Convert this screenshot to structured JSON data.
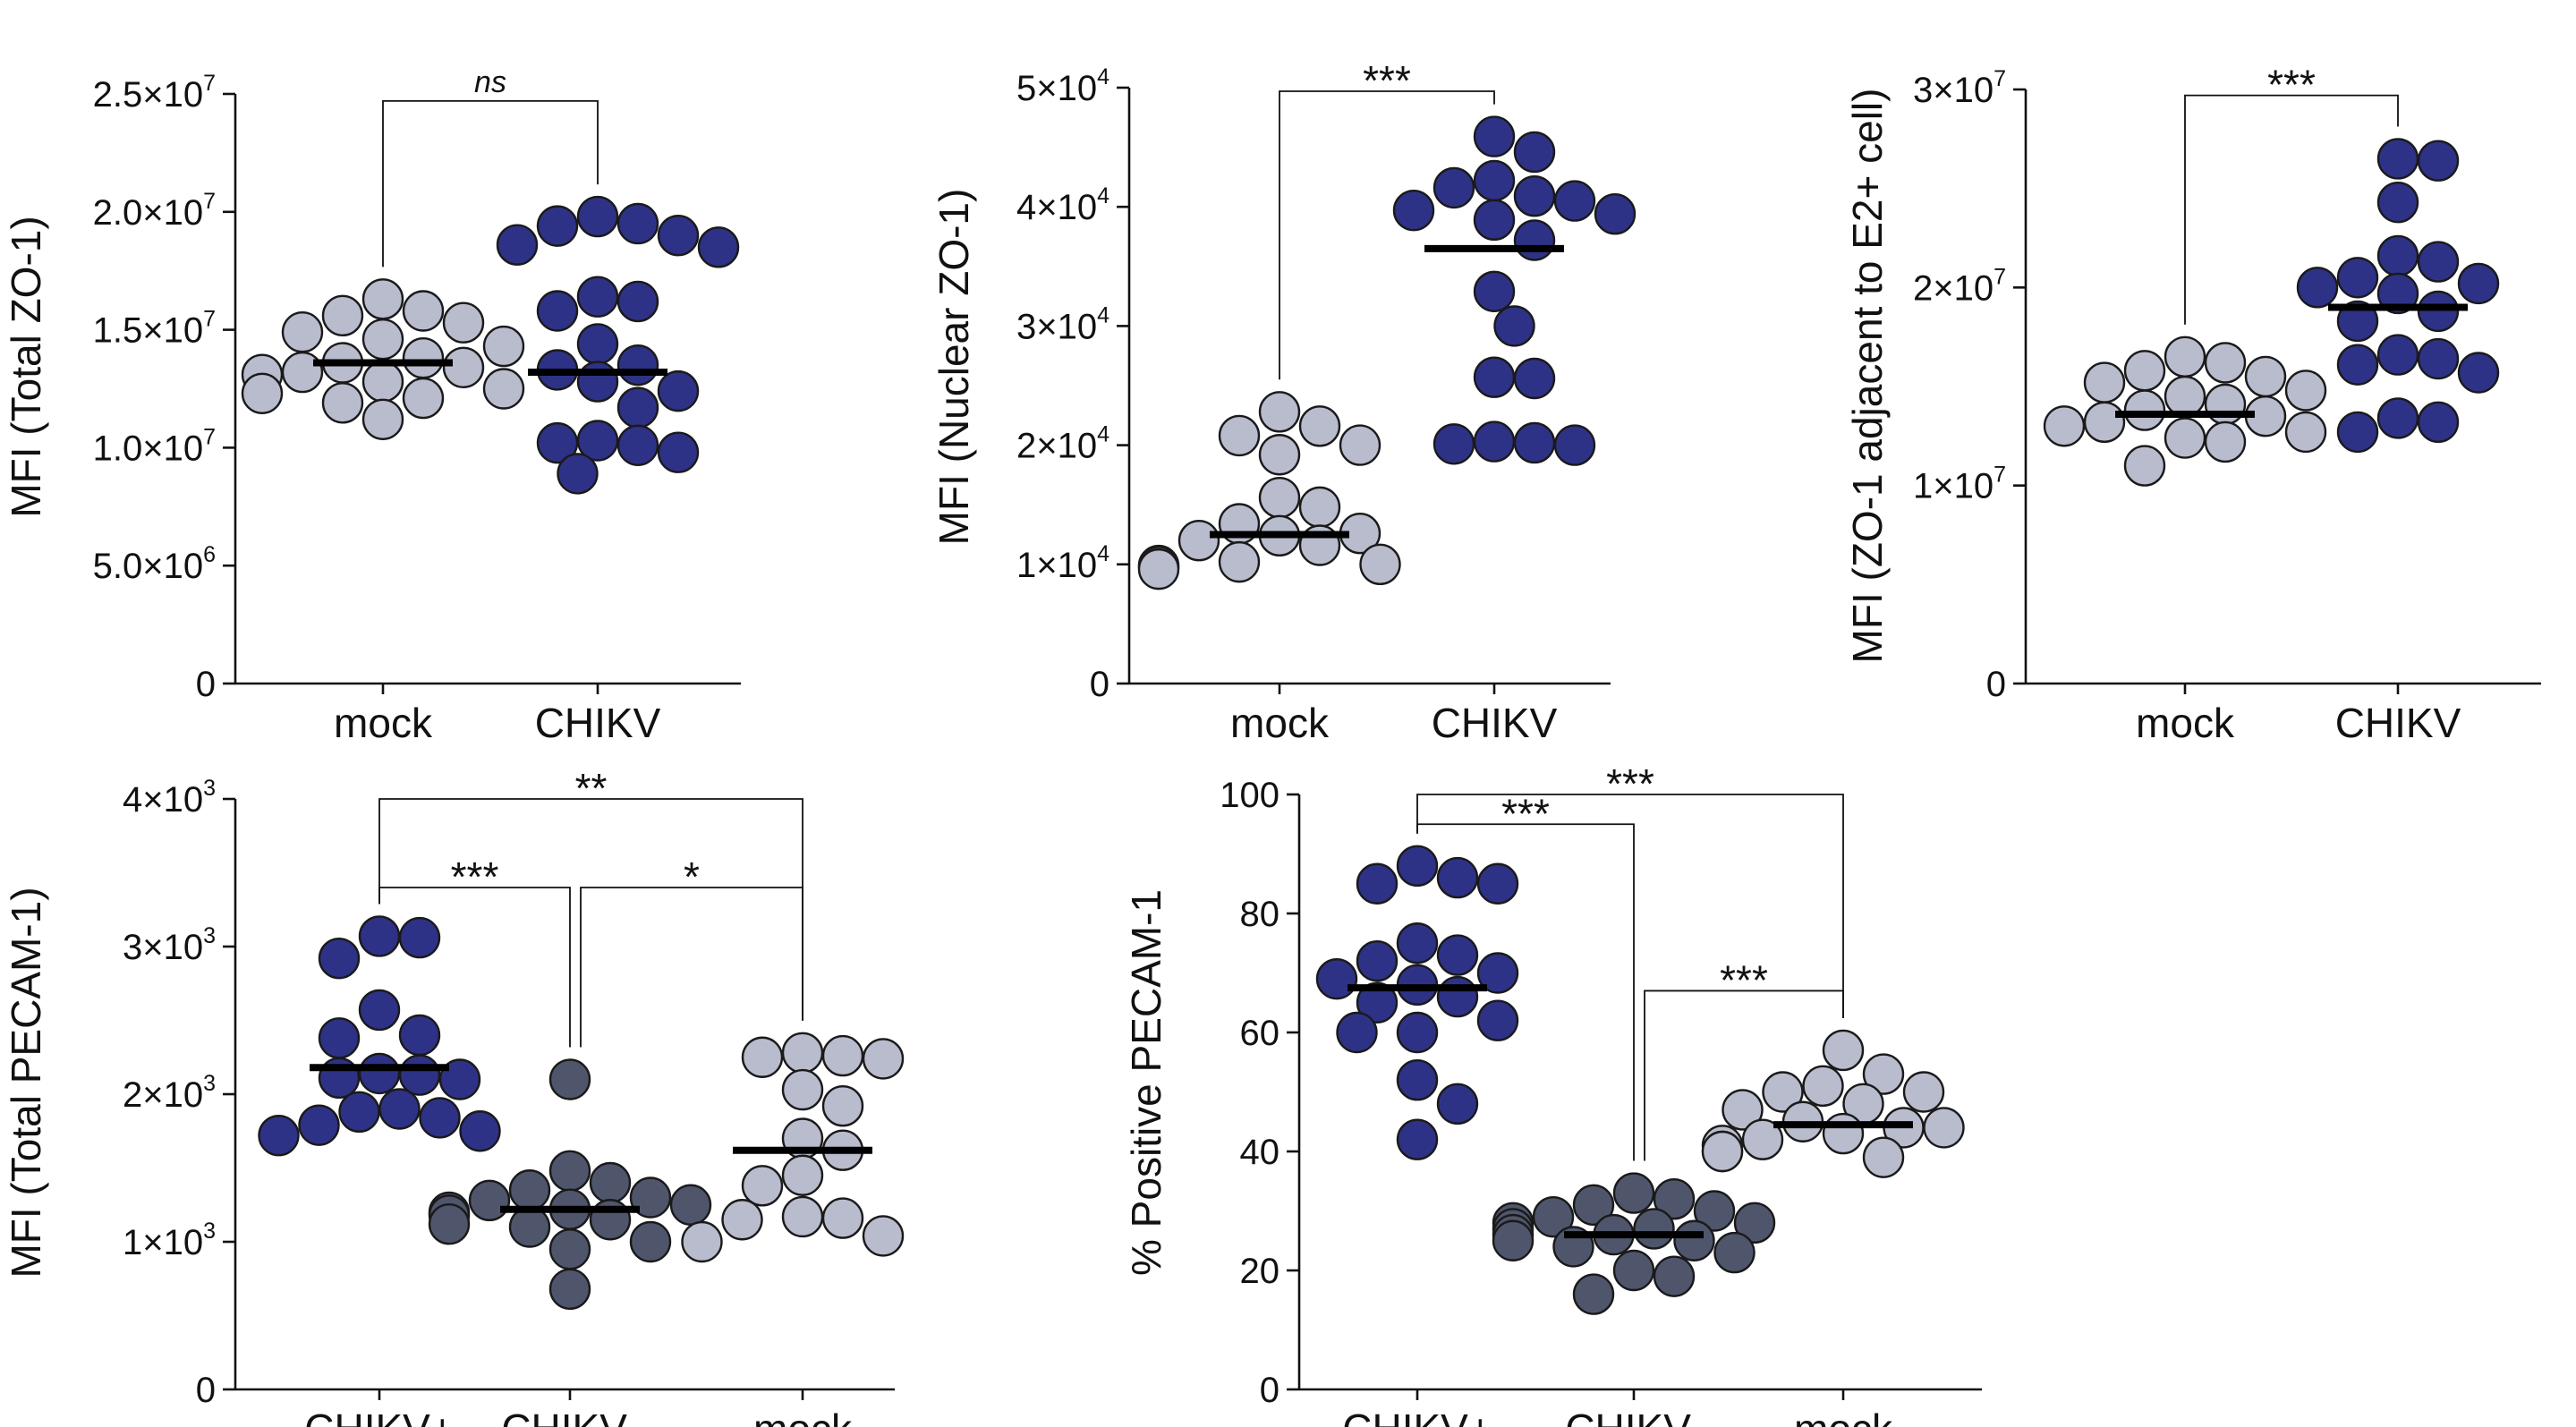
{
  "colors": {
    "chikv": "#2e3286",
    "mock": "#b9bccd",
    "chikv_neg": "#4f566c",
    "axis": "#111111",
    "mean_line": "#000000"
  },
  "chart_data": [
    {
      "id": "panel-total-zo1",
      "type": "scatter",
      "ylabel": "MFI (Total ZO-1)",
      "ylim": [
        0,
        25000000
      ],
      "yticks": [
        {
          "value": 0,
          "base": "0",
          "exp": ""
        },
        {
          "value": 5000000,
          "base": "5.0×10",
          "exp": "6"
        },
        {
          "value": 10000000,
          "base": "1.0×10",
          "exp": "7"
        },
        {
          "value": 15000000,
          "base": "1.5×10",
          "exp": "7"
        },
        {
          "value": 20000000,
          "base": "2.0×10",
          "exp": "7"
        },
        {
          "value": 25000000,
          "base": "2.5×10",
          "exp": "7"
        }
      ],
      "categories": [
        "mock",
        "CHIKV"
      ],
      "series": [
        {
          "name": "mock",
          "color": "mock",
          "mean": 13600000,
          "values": [
            16300000,
            15800000,
            15600000,
            15300000,
            14900000,
            14600000,
            14300000,
            13800000,
            13600000,
            13400000,
            13200000,
            13100000,
            12800000,
            12500000,
            12300000,
            12100000,
            11900000,
            11200000
          ]
        },
        {
          "name": "CHIKV",
          "color": "chikv",
          "mean": 13200000,
          "values": [
            19800000,
            19500000,
            19400000,
            19000000,
            18600000,
            18500000,
            16400000,
            16200000,
            15800000,
            14400000,
            13500000,
            13300000,
            12800000,
            12400000,
            11700000,
            10300000,
            10200000,
            10100000,
            9800000,
            8900000
          ]
        }
      ],
      "brackets": [
        {
          "from": 0,
          "to": 1,
          "y": 24700000,
          "label": "ns",
          "style": "ns"
        }
      ]
    },
    {
      "id": "panel-nuclear-zo1",
      "type": "scatter",
      "ylabel": "MFI (Nuclear ZO-1)",
      "ylim": [
        0,
        50000
      ],
      "yticks": [
        {
          "value": 0,
          "base": "0",
          "exp": ""
        },
        {
          "value": 10000,
          "base": "1×10",
          "exp": "4"
        },
        {
          "value": 20000,
          "base": "2×10",
          "exp": "4"
        },
        {
          "value": 30000,
          "base": "3×10",
          "exp": "4"
        },
        {
          "value": 40000,
          "base": "4×10",
          "exp": "4"
        },
        {
          "value": 50000,
          "base": "5×10",
          "exp": "4"
        }
      ],
      "categories": [
        "mock",
        "CHIKV"
      ],
      "series": [
        {
          "name": "mock",
          "color": "mock",
          "mean": 12500,
          "values": [
            22800,
            21600,
            20800,
            20000,
            19200,
            15600,
            14800,
            13400,
            12600,
            12400,
            12000,
            11600,
            10200,
            10000,
            9900,
            9800,
            9600
          ]
        },
        {
          "name": "CHIKV",
          "color": "chikv",
          "mean": 36500,
          "values": [
            45900,
            44600,
            42200,
            41600,
            40900,
            40500,
            39700,
            39400,
            38900,
            37200,
            32900,
            30000,
            25700,
            25600,
            20300,
            20200,
            20100,
            20000
          ]
        }
      ],
      "brackets": [
        {
          "from": 0,
          "to": 1,
          "y": 49700,
          "label": "***",
          "style": "star"
        }
      ]
    },
    {
      "id": "panel-zo1-adjacent",
      "type": "scatter",
      "ylabel": "MFI (ZO-1 adjacent to E2+ cell)",
      "ylim": [
        0,
        30000000
      ],
      "yticks": [
        {
          "value": 0,
          "base": "0",
          "exp": ""
        },
        {
          "value": 10000000,
          "base": "1×10",
          "exp": "7"
        },
        {
          "value": 20000000,
          "base": "2×10",
          "exp": "7"
        },
        {
          "value": 30000000,
          "base": "3×10",
          "exp": "7"
        }
      ],
      "categories": [
        "mock",
        "CHIKV"
      ],
      "series": [
        {
          "name": "mock",
          "color": "mock",
          "mean": 13600000,
          "values": [
            16500000,
            16200000,
            15800000,
            15500000,
            15200000,
            14800000,
            14500000,
            14100000,
            13800000,
            13500000,
            13200000,
            13000000,
            12700000,
            12400000,
            12200000,
            11000000
          ]
        },
        {
          "name": "CHIKV",
          "color": "chikv",
          "mean": 19000000,
          "values": [
            26500000,
            26400000,
            24300000,
            21600000,
            21300000,
            20500000,
            20200000,
            20000000,
            19700000,
            18800000,
            18300000,
            16600000,
            16400000,
            16100000,
            15700000,
            13400000,
            13200000,
            12700000
          ]
        }
      ],
      "brackets": [
        {
          "from": 0,
          "to": 1,
          "y": 29700000,
          "label": "***",
          "style": "star"
        }
      ]
    },
    {
      "id": "panel-total-pecam1",
      "type": "scatter",
      "ylabel": "MFI (Total PECAM-1)",
      "ylim": [
        0,
        4000
      ],
      "yticks": [
        {
          "value": 0,
          "base": "0",
          "exp": ""
        },
        {
          "value": 1000,
          "base": "1×10",
          "exp": "3"
        },
        {
          "value": 2000,
          "base": "2×10",
          "exp": "3"
        },
        {
          "value": 3000,
          "base": "3×10",
          "exp": "3"
        },
        {
          "value": 4000,
          "base": "4×10",
          "exp": "3"
        }
      ],
      "categories": [
        "CHIKV+",
        "CHIKV-",
        "mock"
      ],
      "series": [
        {
          "name": "CHIKV+",
          "color": "chikv",
          "mean": 2180,
          "values": [
            3070,
            3060,
            2920,
            2570,
            2400,
            2380,
            2140,
            2130,
            2110,
            2100,
            1900,
            1880,
            1840,
            1790,
            1750,
            1720
          ]
        },
        {
          "name": "CHIKV-",
          "color": "chikv_neg",
          "mean": 1220,
          "values": [
            2100,
            1480,
            1400,
            1350,
            1300,
            1280,
            1250,
            1220,
            1200,
            1180,
            1150,
            1120,
            1100,
            1000,
            950,
            680
          ]
        },
        {
          "name": "mock",
          "color": "mock",
          "mean": 1620,
          "values": [
            2280,
            2260,
            2250,
            2240,
            2030,
            1920,
            1700,
            1620,
            1450,
            1380,
            1170,
            1160,
            1150,
            1040,
            1000
          ]
        }
      ],
      "brackets": [
        {
          "from": 0,
          "to": 2,
          "y": 4000,
          "label": "**",
          "style": "star"
        },
        {
          "from": 0,
          "to": 1,
          "y": 3400,
          "label": "***",
          "style": "star"
        },
        {
          "from": 1,
          "to": 2,
          "y": 3400,
          "label": "*",
          "style": "star"
        }
      ]
    },
    {
      "id": "panel-positive-pecam1",
      "type": "scatter",
      "ylabel": "% Positive PECAM-1",
      "ylim": [
        0,
        100
      ],
      "yticks": [
        {
          "value": 0,
          "base": "0",
          "exp": ""
        },
        {
          "value": 20,
          "base": "20",
          "exp": ""
        },
        {
          "value": 40,
          "base": "40",
          "exp": ""
        },
        {
          "value": 60,
          "base": "60",
          "exp": ""
        },
        {
          "value": 80,
          "base": "80",
          "exp": ""
        },
        {
          "value": 100,
          "base": "100",
          "exp": ""
        }
      ],
      "categories": [
        "CHIKV+",
        "CHIKV-",
        "mock"
      ],
      "series": [
        {
          "name": "CHIKV+",
          "color": "chikv",
          "mean": 67.5,
          "values": [
            88,
            86,
            85,
            85,
            75,
            73,
            72,
            70,
            69,
            68,
            66,
            65,
            62,
            60,
            60,
            52,
            48,
            42
          ]
        },
        {
          "name": "CHIKV-",
          "color": "chikv_neg",
          "mean": 26,
          "values": [
            33,
            32,
            31,
            30,
            29,
            28,
            28,
            27,
            27,
            26,
            26,
            25,
            25,
            24,
            23,
            20,
            19,
            16
          ]
        },
        {
          "name": "mock",
          "color": "mock",
          "mean": 44.5,
          "values": [
            57,
            53,
            51,
            50,
            50,
            48,
            47,
            45,
            44,
            44,
            43,
            42,
            41,
            40,
            40,
            39
          ]
        }
      ],
      "brackets": [
        {
          "from": 0,
          "to": 2,
          "y": 100,
          "label": "***",
          "style": "star"
        },
        {
          "from": 0,
          "to": 1,
          "y": 95,
          "label": "***",
          "style": "star"
        },
        {
          "from": 1,
          "to": 2,
          "y": 67,
          "label": "***",
          "style": "star"
        }
      ]
    }
  ]
}
